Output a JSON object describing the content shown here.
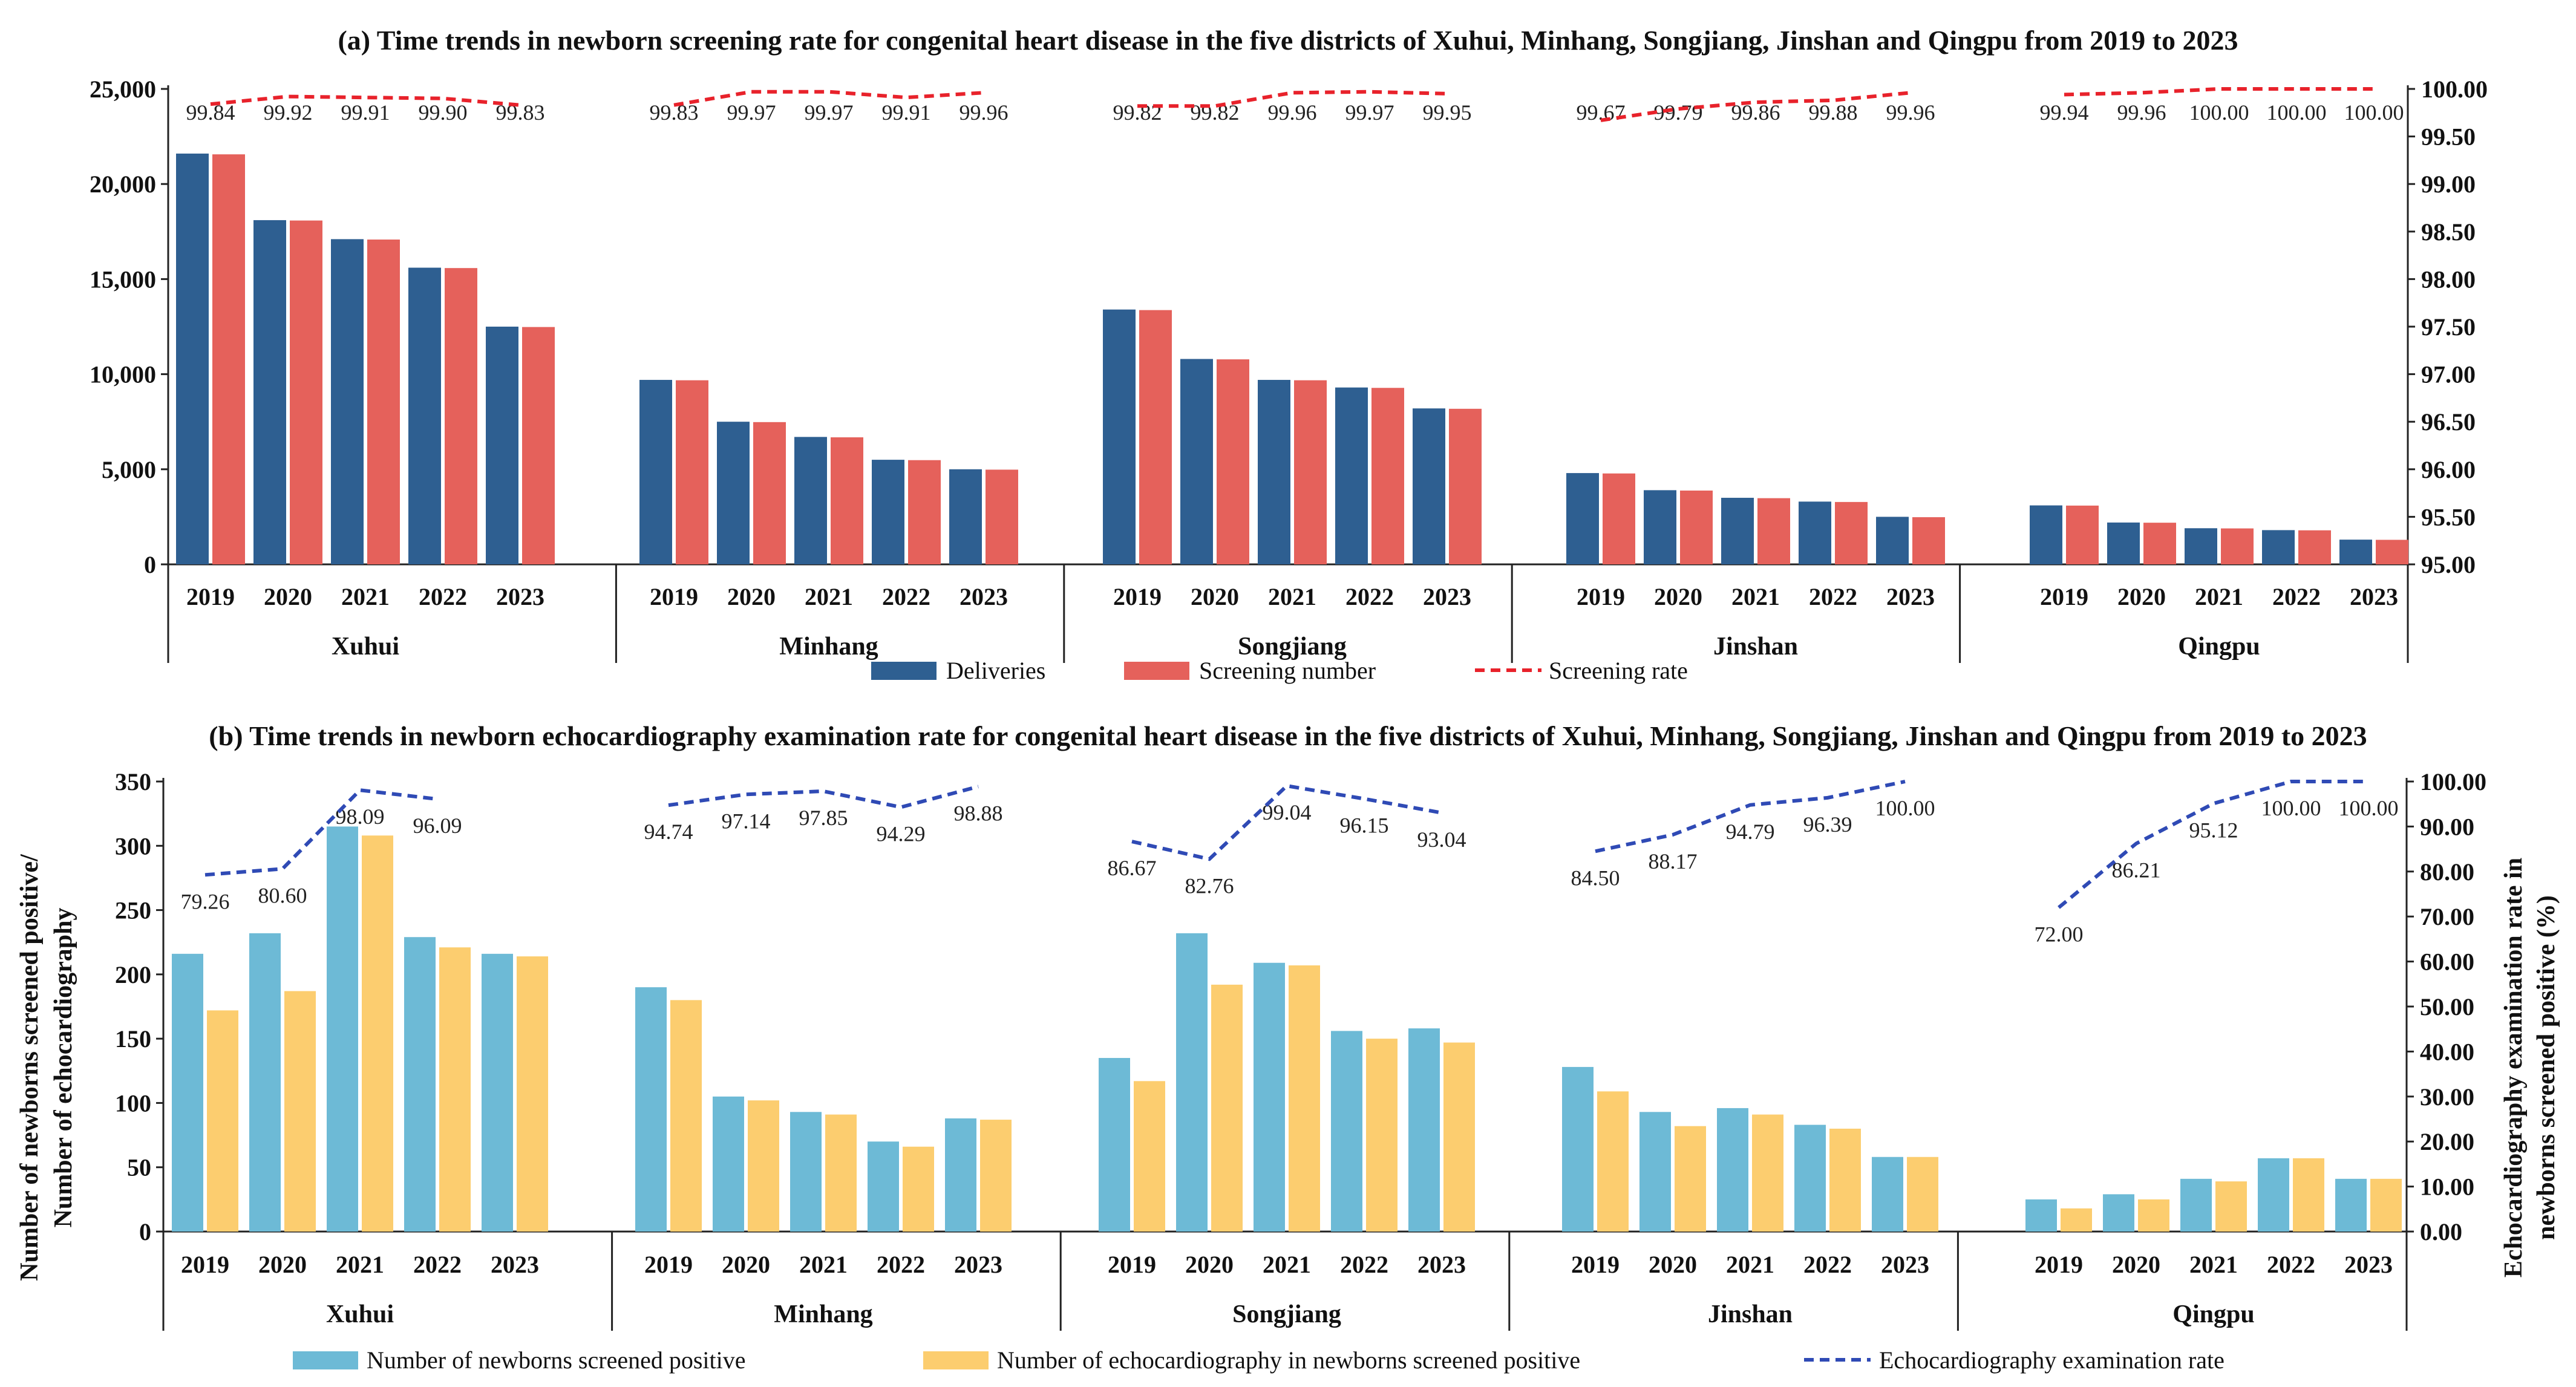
{
  "chart_data": [
    {
      "type": "bar",
      "title": "(a) Time trends in newborn screening rate for congenital heart disease in the five districts of Xuhui, Minhang, Songjiang, Jinshan and Qingpu from 2019 to 2023",
      "years": [
        "2019",
        "2020",
        "2021",
        "2022",
        "2023"
      ],
      "districts": [
        "Xuhui",
        "Minhang",
        "Songjiang",
        "Jinshan",
        "Qingpu"
      ],
      "ylim_left": [
        0,
        25000
      ],
      "yticks_left": [
        "0",
        "5,000",
        "10,000",
        "15,000",
        "20,000",
        "25,000"
      ],
      "ylim_right": [
        95.0,
        100.0
      ],
      "yticks_right": [
        "95.00",
        "95.50",
        "96.00",
        "96.50",
        "97.00",
        "97.50",
        "98.00",
        "98.50",
        "99.00",
        "99.50",
        "100.00"
      ],
      "series": [
        {
          "name": "Deliveries",
          "kind": "bar",
          "axis": "left",
          "color": "#2e5f91",
          "values": [
            [
              21600,
              18100,
              17100,
              15600,
              12500
            ],
            [
              9700,
              7500,
              6700,
              5500,
              5000
            ],
            [
              13400,
              10800,
              9700,
              9300,
              8200
            ],
            [
              4800,
              3900,
              3500,
              3300,
              2500
            ],
            [
              3100,
              2200,
              1900,
              1800,
              1300
            ]
          ]
        },
        {
          "name": "Screening number",
          "kind": "bar",
          "axis": "left",
          "color": "#e5615b",
          "values": [
            [
              21560,
              18080,
              17080,
              15580,
              12480
            ],
            [
              9680,
              7480,
              6680,
              5480,
              4980
            ],
            [
              13370,
              10780,
              9680,
              9280,
              8180
            ],
            [
              4780,
              3880,
              3480,
              3280,
              2480
            ],
            [
              3090,
              2190,
              1890,
              1790,
              1290
            ]
          ]
        },
        {
          "name": "Screening rate",
          "kind": "line",
          "axis": "right",
          "color": "#e8222b",
          "values": [
            [
              99.84,
              99.92,
              99.91,
              99.9,
              99.83
            ],
            [
              99.83,
              99.97,
              99.97,
              99.91,
              99.96
            ],
            [
              99.82,
              99.82,
              99.96,
              99.97,
              99.95
            ],
            [
              99.67,
              99.79,
              99.86,
              99.88,
              99.96
            ],
            [
              99.94,
              99.96,
              100.0,
              100.0,
              100.0
            ]
          ],
          "labels": [
            [
              "99.84",
              "99.92",
              "99.91",
              "99.90",
              "99.83"
            ],
            [
              "99.83",
              "99.97",
              "99.97",
              "99.91",
              "99.96"
            ],
            [
              "99.82",
              "99.82",
              "99.96",
              "99.97",
              "99.95"
            ],
            [
              "99.67",
              "99.79",
              "99.86",
              "99.88",
              "99.96"
            ],
            [
              "99.94",
              "99.96",
              "100.00",
              "100.00",
              "100.00"
            ]
          ]
        }
      ]
    },
    {
      "type": "bar",
      "title": "(b) Time trends in newborn echocardiography examination rate for congenital heart disease in the five districts of Xuhui, Minhang, Songjiang, Jinshan and Qingpu from 2019 to 2023",
      "years": [
        "2019",
        "2020",
        "2021",
        "2022",
        "2023"
      ],
      "districts": [
        "Xuhui",
        "Minhang",
        "Songjiang",
        "Jinshan",
        "Qingpu"
      ],
      "ylabel_left": [
        "Number of newborns screened positive/",
        "Number of echocardiography"
      ],
      "ylabel_right": [
        "Echocardiography examination rate in",
        "newborns screened positive (%)"
      ],
      "ylim_left": [
        0,
        350
      ],
      "yticks_left": [
        "0",
        "50",
        "100",
        "150",
        "200",
        "250",
        "300",
        "350"
      ],
      "ylim_right": [
        0,
        100
      ],
      "yticks_right": [
        "0.00",
        "10.00",
        "20.00",
        "30.00",
        "40.00",
        "50.00",
        "60.00",
        "70.00",
        "80.00",
        "90.00",
        "100.00"
      ],
      "series": [
        {
          "name": "Number of newborns screened positive",
          "kind": "bar",
          "axis": "left",
          "color": "#6dbad6",
          "values": [
            [
              216,
              232,
              315,
              229,
              216
            ],
            [
              190,
              105,
              93,
              70,
              88
            ],
            [
              135,
              232,
              209,
              156,
              158
            ],
            [
              128,
              93,
              96,
              83,
              58
            ],
            [
              25,
              29,
              41,
              57,
              41
            ]
          ]
        },
        {
          "name": "Number of echocardiography in newborns screened positive",
          "kind": "bar",
          "axis": "left",
          "color": "#fccd6f",
          "values": [
            [
              172,
              187,
              308,
              221,
              214
            ],
            [
              180,
              102,
              91,
              66,
              87
            ],
            [
              117,
              192,
              207,
              150,
              147
            ],
            [
              109,
              82,
              91,
              80,
              58
            ],
            [
              18,
              25,
              39,
              57,
              41
            ]
          ]
        },
        {
          "name": "Echocardiography examination rate",
          "kind": "line",
          "axis": "right",
          "color": "#2f4ab5",
          "values": [
            [
              79.26,
              80.6,
              98.09,
              96.09,
              null
            ],
            [
              94.74,
              97.14,
              97.85,
              94.29,
              98.88
            ],
            [
              86.67,
              82.76,
              99.04,
              96.15,
              93.04
            ],
            [
              84.5,
              88.17,
              94.79,
              96.39,
              100.0
            ],
            [
              72.0,
              86.21,
              95.12,
              100.0,
              100.0
            ]
          ],
          "labels": [
            [
              "79.26",
              "80.60",
              "98.09",
              "96.09",
              ""
            ],
            [
              "94.74",
              "97.14",
              "97.85",
              "94.29",
              "98.88"
            ],
            [
              "86.67",
              "82.76",
              "99.04",
              "96.15",
              "93.04"
            ],
            [
              "84.50",
              "88.17",
              "94.79",
              "96.39",
              "100.00"
            ],
            [
              "72.00",
              "86.21",
              "95.12",
              "100.00",
              "100.00"
            ]
          ]
        }
      ]
    }
  ]
}
